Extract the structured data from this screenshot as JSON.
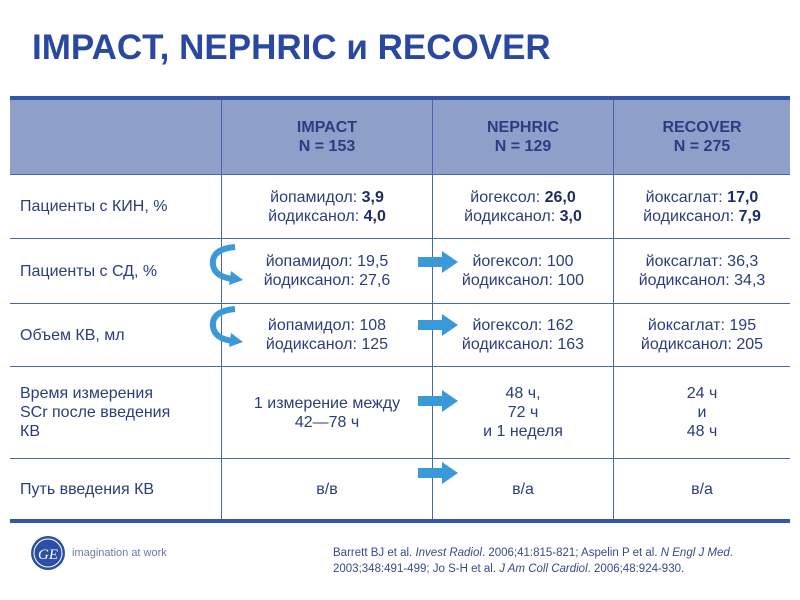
{
  "title": "IMPACT, NEPHRIC и RECOVER",
  "table": {
    "headers": [
      {
        "name": "IMPACT",
        "n": "N = 153"
      },
      {
        "name": "NEPHRIC",
        "n": "N = 129"
      },
      {
        "name": "RECOVER",
        "n": "N = 275"
      }
    ],
    "rows": [
      {
        "label": "Пациенты с КИН, %",
        "cells": [
          [
            "йопамидол: ",
            "3,9",
            "йодиксанол: ",
            "4,0"
          ],
          [
            "йогексол: ",
            "26,0",
            "йодиксанол: ",
            "3,0"
          ],
          [
            "йоксаглат: ",
            "17,0",
            "йодиксанол: ",
            "7,9"
          ]
        ]
      },
      {
        "label": "Пациенты с СД, %",
        "cells": [
          [
            "йопамидол: 19,5",
            "йодиксанол: 27,6"
          ],
          [
            "йогексол: 100",
            "йодиксанол: 100"
          ],
          [
            "йоксаглат: 36,3",
            "йодиксанол: 34,3"
          ]
        ]
      },
      {
        "label": "Объем КВ, мл",
        "cells": [
          [
            "йопамидол: 108",
            "йодиксанол: 125"
          ],
          [
            "йогексол: 162",
            "йодиксанол: 163"
          ],
          [
            "йоксаглат: 195",
            "йодиксанол: 205"
          ]
        ]
      },
      {
        "label": [
          "Время измерения",
          "SCr после введения",
          "КВ"
        ],
        "cells": [
          [
            "1  измерение между",
            "42—78 ч"
          ],
          [
            "48 ч,",
            "72 ч",
            "и 1 неделя"
          ],
          [
            "24 ч",
            "и",
            "48 ч"
          ]
        ]
      },
      {
        "label": "Путь введения КВ",
        "cells": [
          [
            "в/в"
          ],
          [
            "в/а"
          ],
          [
            "в/а"
          ]
        ]
      }
    ]
  },
  "logo": {
    "text": "imagination at work",
    "mark": "GE"
  },
  "citation": {
    "parts": [
      "Barrett BJ et al. ",
      "Invest Radiol",
      ". 2006;41:815-821; Aspelin P et al. ",
      "N Engl J Med",
      ". 2003;348:491-499; Jo S-H et al. ",
      "J Am Coll Cardiol",
      ". 2006;48:924-930."
    ]
  },
  "colors": {
    "title": "#2a48a0",
    "header_bg": "#8e9fca",
    "arrow": "#3a9ad9"
  }
}
